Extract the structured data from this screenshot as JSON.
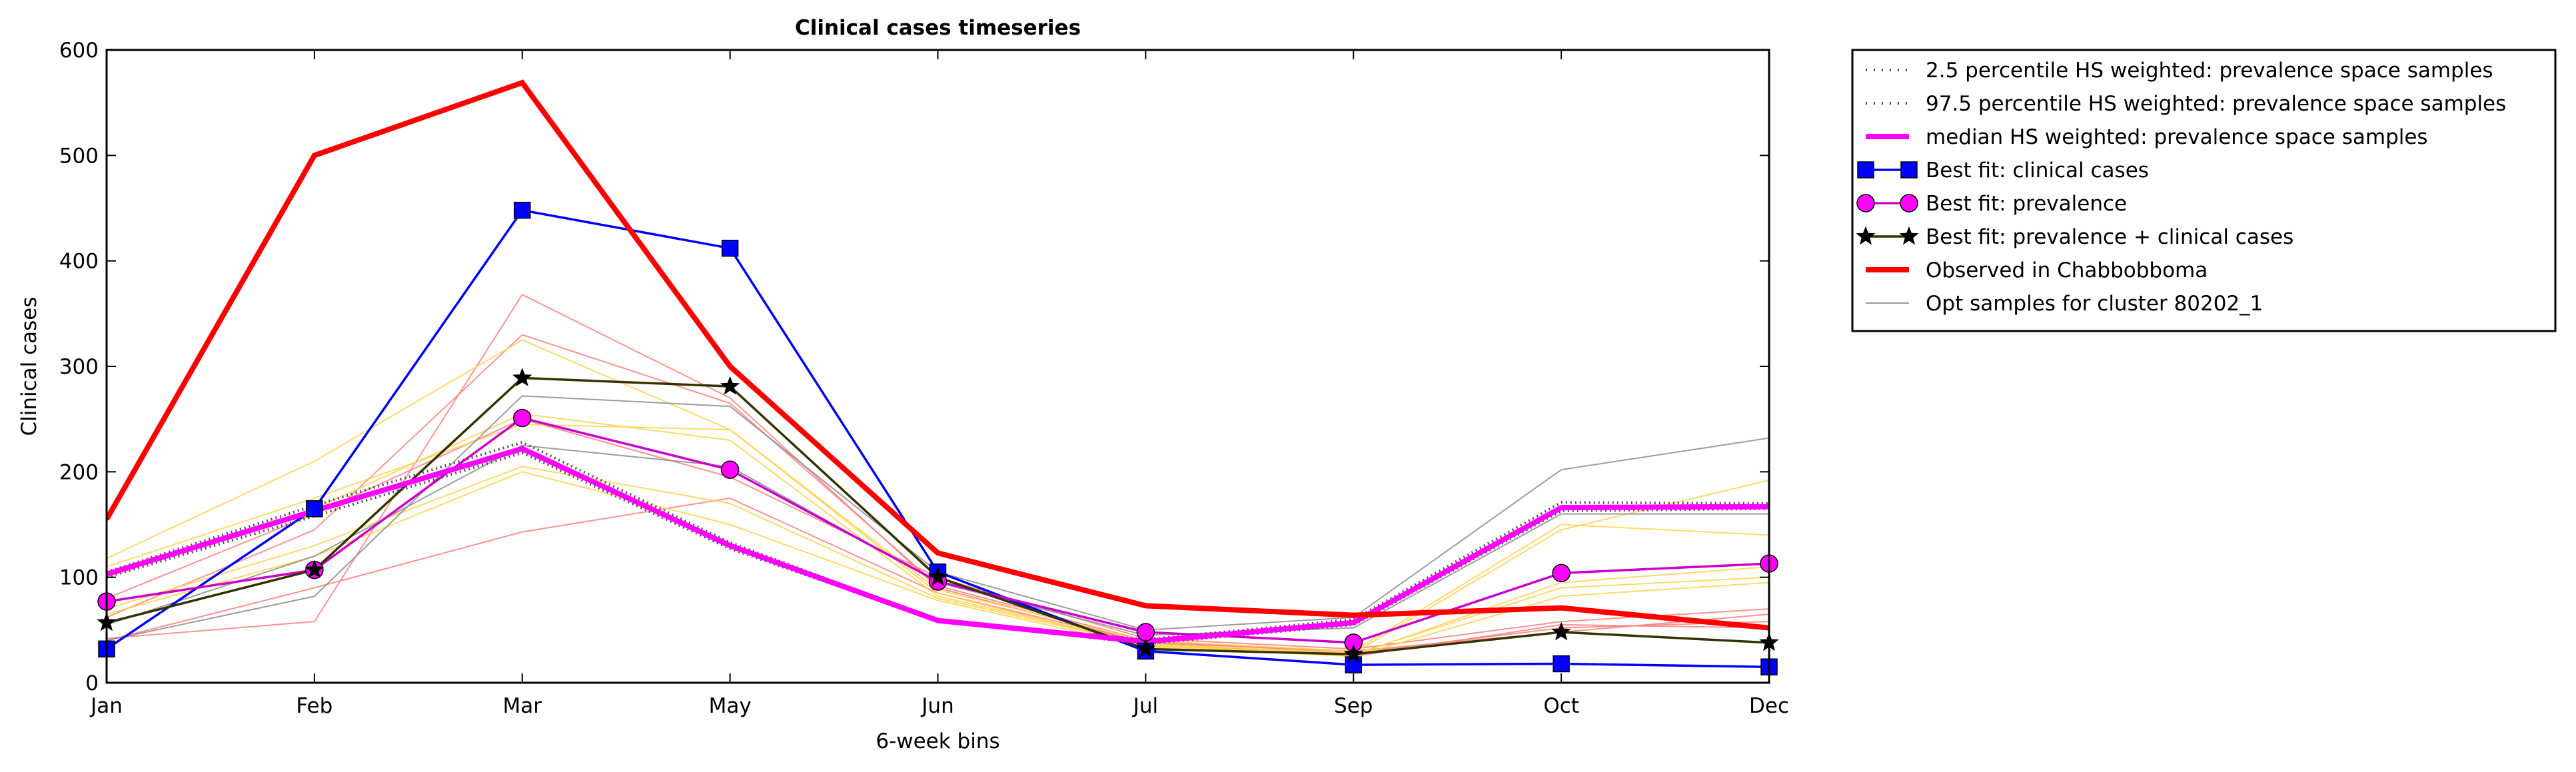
{
  "chart_data": {
    "type": "line",
    "title": "Clinical cases timeseries",
    "xlabel": "6-week bins",
    "ylabel": "Clinical cases",
    "categories": [
      "Jan",
      "Feb",
      "Mar",
      "May",
      "Jun",
      "Jul",
      "Sep",
      "Oct",
      "Dec"
    ],
    "ylim": [
      0,
      600
    ],
    "yticks": [
      0,
      100,
      200,
      300,
      400,
      500,
      600
    ],
    "grid": false,
    "legend_position": "outside-top-right",
    "background_samples": [
      {
        "color": "#ff7f7f",
        "values": [
          42,
          58,
          368,
          270,
          90,
          38,
          25,
          55,
          52
        ]
      },
      {
        "color": "#ff7f7f",
        "values": [
          62,
          145,
          330,
          265,
          92,
          40,
          28,
          52,
          58
        ]
      },
      {
        "color": "#ff7f7f",
        "values": [
          40,
          90,
          143,
          175,
          85,
          38,
          30,
          48,
          65
        ]
      },
      {
        "color": "#ff7f7f",
        "values": [
          80,
          160,
          250,
          195,
          100,
          42,
          32,
          58,
          70
        ]
      },
      {
        "color": "#ffd24d",
        "values": [
          118,
          210,
          325,
          240,
          85,
          35,
          27,
          90,
          100
        ]
      },
      {
        "color": "#ffd24d",
        "values": [
          70,
          130,
          205,
          170,
          80,
          36,
          26,
          95,
          110
        ]
      },
      {
        "color": "#ffd24d",
        "values": [
          110,
          175,
          245,
          240,
          88,
          40,
          30,
          150,
          140
        ]
      },
      {
        "color": "#ffd24d",
        "values": [
          100,
          165,
          255,
          230,
          82,
          37,
          28,
          145,
          192
        ]
      },
      {
        "color": "#ffd24d",
        "values": [
          65,
          120,
          200,
          150,
          78,
          34,
          25,
          82,
          95
        ]
      },
      {
        "color": "#8c8c8c",
        "values": [
          40,
          82,
          272,
          262,
          105,
          50,
          62,
          202,
          232
        ]
      },
      {
        "color": "#8c8c8c",
        "values": [
          55,
          120,
          225,
          205,
          95,
          45,
          52,
          160,
          160
        ]
      }
    ],
    "series": [
      {
        "name": "2.5 percentile HS weighted: prevalence space samples",
        "color": "#4d4d4d",
        "style": "dotted",
        "values": [
          100,
          158,
          218,
          127,
          59,
          37,
          55,
          163,
          165
        ]
      },
      {
        "name": "97.5 percentile HS weighted: prevalence space samples",
        "color": "#4d4d4d",
        "style": "dotted",
        "values": [
          105,
          168,
          228,
          133,
          59,
          41,
          60,
          171,
          170
        ]
      },
      {
        "name": "median HS weighted: prevalence space samples",
        "color": "#ff00ff",
        "style": "solid",
        "values": [
          103,
          163,
          222,
          130,
          59,
          39,
          57,
          166,
          167
        ]
      },
      {
        "name": "Best fit: clinical cases",
        "color": "#0000ff",
        "style": "solid",
        "marker": "square",
        "values": [
          32,
          165,
          448,
          412,
          105,
          30,
          17,
          18,
          15
        ]
      },
      {
        "name": "Best fit: prevalence",
        "color": "#cc00cc",
        "markerFill": "#ff00ff",
        "style": "solid",
        "marker": "circle",
        "values": [
          77,
          107,
          251,
          202,
          96,
          48,
          38,
          104,
          113
        ]
      },
      {
        "name": "Best fit: prevalence + clinical cases",
        "color": "#333300",
        "style": "solid",
        "marker": "star",
        "values": [
          57,
          107,
          289,
          281,
          100,
          32,
          27,
          48,
          38
        ]
      },
      {
        "name": "Observed in Chabbobboma",
        "color": "#ff0000",
        "style": "solid",
        "values": [
          155,
          500,
          569,
          300,
          123,
          73,
          64,
          71,
          52
        ]
      },
      {
        "name": "Opt samples for cluster 80202_1",
        "color": "#999999",
        "style": "thin",
        "values": null
      }
    ]
  }
}
